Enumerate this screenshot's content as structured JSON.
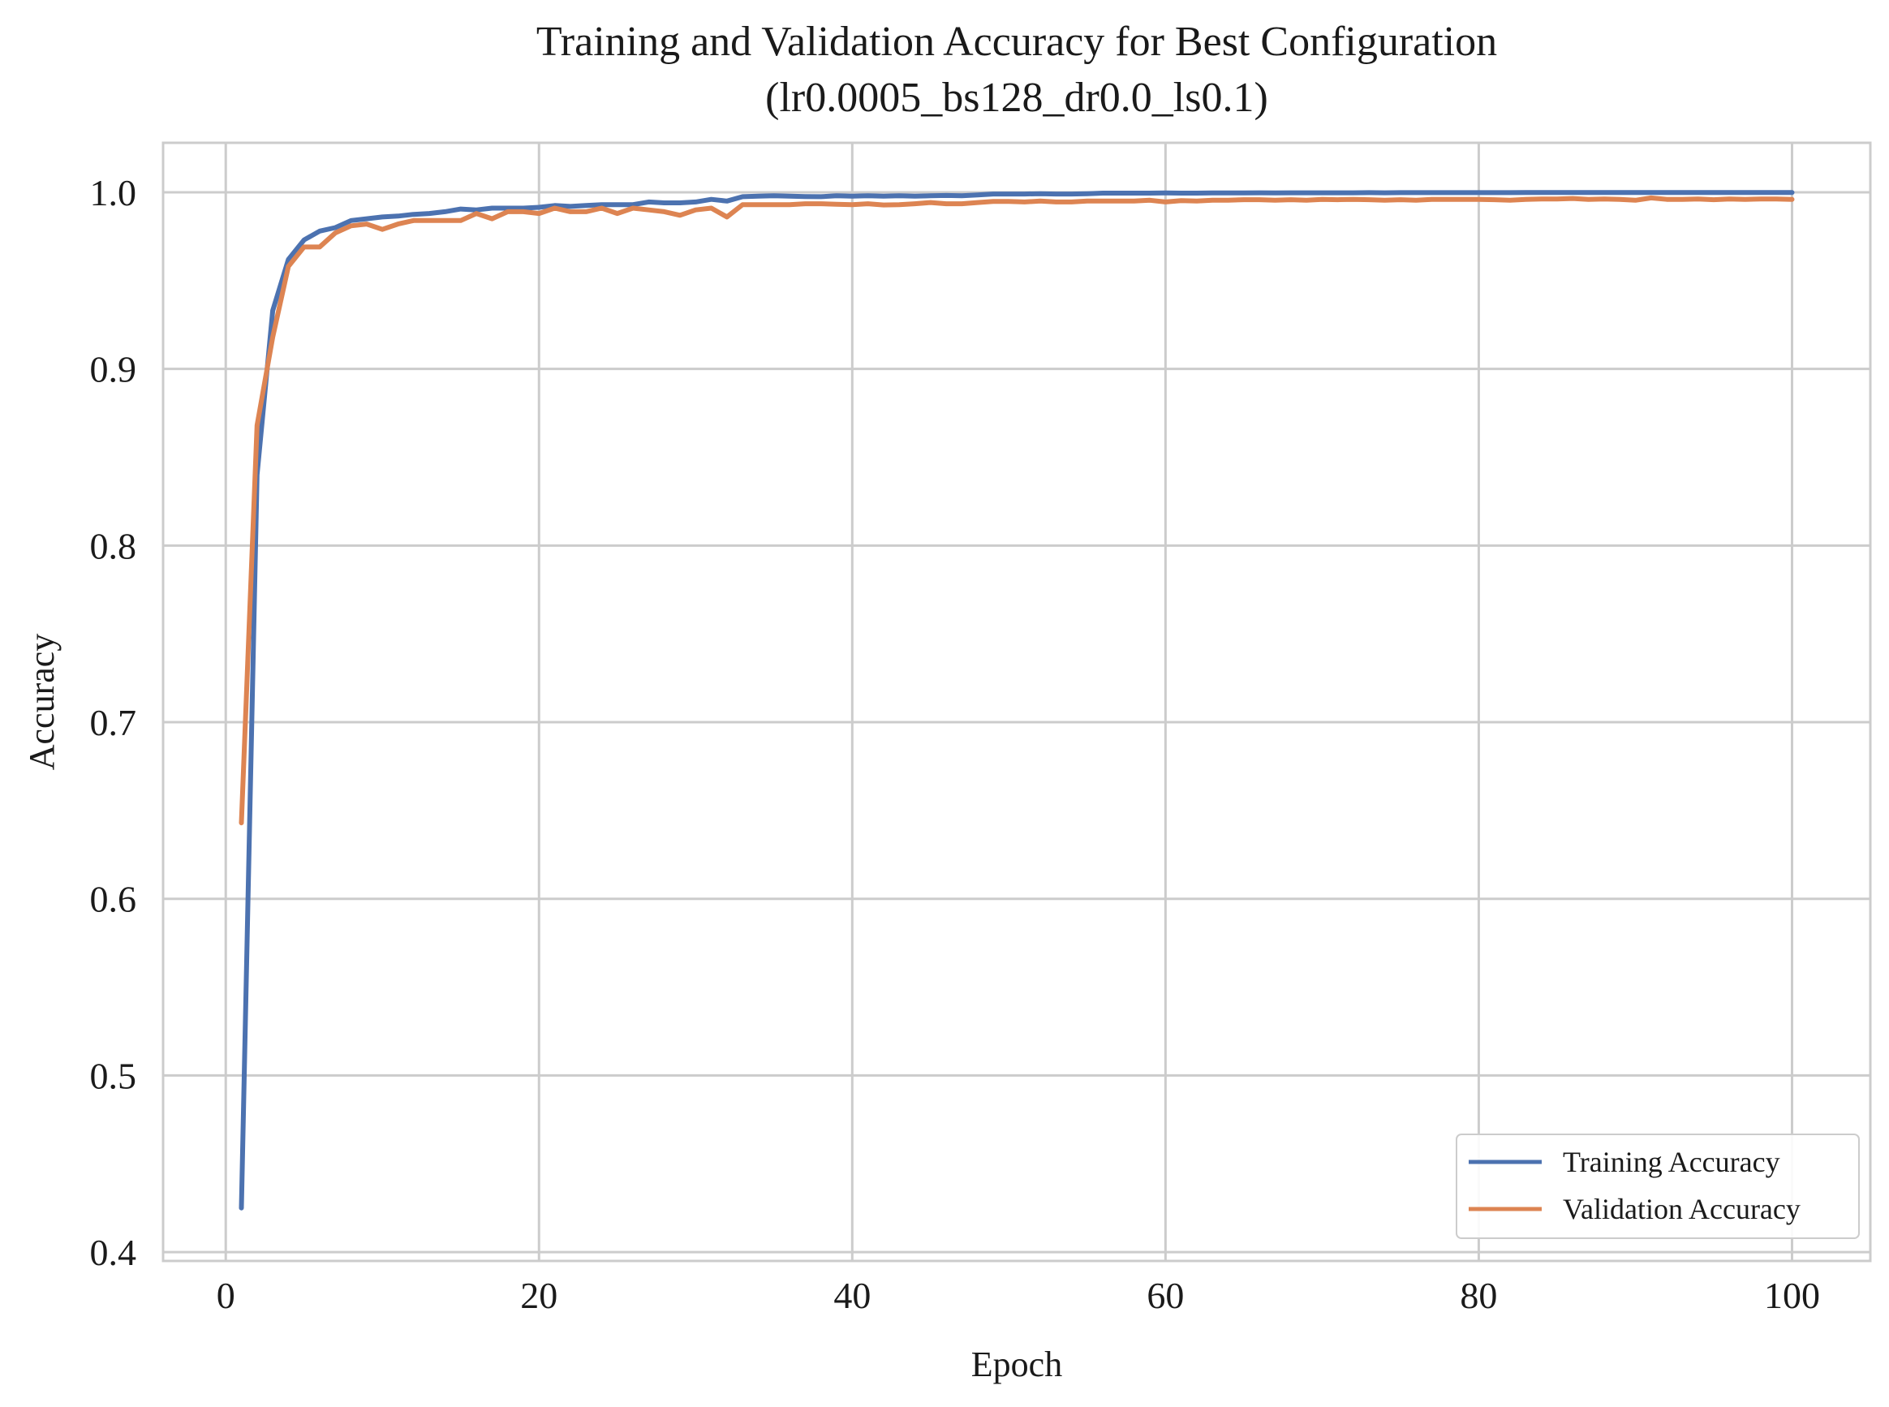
{
  "chart_data": {
    "type": "line",
    "title": "Training and Validation Accuracy for Best Configuration",
    "subtitle": "(lr0.0005_bs128_dr0.0_ls0.1)",
    "xlabel": "Epoch",
    "ylabel": "Accuracy",
    "xlim": [
      -4,
      105
    ],
    "ylim": [
      0.395,
      1.028
    ],
    "xticks": [
      0,
      20,
      40,
      60,
      80,
      100
    ],
    "yticks": [
      0.4,
      0.5,
      0.6,
      0.7,
      0.8,
      0.9,
      1.0
    ],
    "xtick_labels": [
      "0",
      "20",
      "40",
      "60",
      "80",
      "100"
    ],
    "ytick_labels": [
      "0.4",
      "0.5",
      "0.6",
      "0.7",
      "0.8",
      "0.9",
      "1.0"
    ],
    "grid": true,
    "legend_position": "lower-right",
    "x": [
      1,
      2,
      3,
      4,
      5,
      6,
      7,
      8,
      9,
      10,
      11,
      12,
      13,
      14,
      15,
      16,
      17,
      18,
      19,
      20,
      21,
      22,
      23,
      24,
      25,
      26,
      27,
      28,
      29,
      30,
      31,
      32,
      33,
      34,
      35,
      36,
      37,
      38,
      39,
      40,
      41,
      42,
      43,
      44,
      45,
      46,
      47,
      48,
      49,
      50,
      51,
      52,
      53,
      54,
      55,
      56,
      57,
      58,
      59,
      60,
      61,
      62,
      63,
      64,
      65,
      66,
      67,
      68,
      69,
      70,
      71,
      72,
      73,
      74,
      75,
      76,
      77,
      78,
      79,
      80,
      81,
      82,
      83,
      84,
      85,
      86,
      87,
      88,
      89,
      90,
      91,
      92,
      93,
      94,
      95,
      96,
      97,
      98,
      99,
      100
    ],
    "series": [
      {
        "name": "Training Accuracy",
        "color": "#4c72b0",
        "values": [
          0.425,
          0.84,
          0.933,
          0.962,
          0.973,
          0.978,
          0.98,
          0.984,
          0.985,
          0.986,
          0.9865,
          0.9875,
          0.988,
          0.989,
          0.9905,
          0.99,
          0.991,
          0.991,
          0.991,
          0.9915,
          0.9925,
          0.992,
          0.9925,
          0.993,
          0.993,
          0.993,
          0.9945,
          0.994,
          0.994,
          0.9945,
          0.996,
          0.995,
          0.9975,
          0.9978,
          0.998,
          0.9978,
          0.9976,
          0.9975,
          0.998,
          0.9978,
          0.998,
          0.9978,
          0.998,
          0.9978,
          0.998,
          0.9982,
          0.998,
          0.9985,
          0.999,
          0.999,
          0.999,
          0.9992,
          0.999,
          0.999,
          0.9992,
          0.9995,
          0.9995,
          0.9995,
          0.9995,
          0.9996,
          0.9995,
          0.9995,
          0.9996,
          0.9996,
          0.9996,
          0.9997,
          0.9996,
          0.9997,
          0.9997,
          0.9997,
          0.9997,
          0.9997,
          0.9998,
          0.9997,
          0.9998,
          0.9998,
          0.9998,
          0.9998,
          0.9998,
          0.9998,
          0.9998,
          0.9998,
          0.9999,
          0.9999,
          0.9999,
          0.9999,
          0.9999,
          0.9999,
          0.9999,
          0.9999,
          0.9999,
          0.9999,
          0.9999,
          0.9999,
          0.9999,
          0.9999,
          0.9999,
          0.9999,
          0.9999,
          0.9999
        ]
      },
      {
        "name": "Validation Accuracy",
        "color": "#dd8452",
        "values": [
          0.643,
          0.868,
          0.918,
          0.958,
          0.969,
          0.969,
          0.977,
          0.981,
          0.982,
          0.979,
          0.982,
          0.984,
          0.984,
          0.984,
          0.984,
          0.988,
          0.985,
          0.989,
          0.989,
          0.988,
          0.991,
          0.989,
          0.989,
          0.991,
          0.988,
          0.991,
          0.99,
          0.989,
          0.987,
          0.99,
          0.991,
          0.986,
          0.993,
          0.993,
          0.993,
          0.993,
          0.9935,
          0.9935,
          0.9932,
          0.993,
          0.9935,
          0.9928,
          0.993,
          0.9935,
          0.9942,
          0.9935,
          0.9935,
          0.9942,
          0.9948,
          0.9948,
          0.9945,
          0.995,
          0.9945,
          0.9945,
          0.995,
          0.995,
          0.995,
          0.995,
          0.9955,
          0.9945,
          0.9953,
          0.995,
          0.9955,
          0.9955,
          0.9958,
          0.9958,
          0.9955,
          0.9958,
          0.9955,
          0.996,
          0.9958,
          0.996,
          0.9958,
          0.9955,
          0.9958,
          0.9955,
          0.996,
          0.996,
          0.996,
          0.996,
          0.9958,
          0.9955,
          0.996,
          0.9962,
          0.9962,
          0.9965,
          0.996,
          0.9962,
          0.996,
          0.9955,
          0.9968,
          0.996,
          0.996,
          0.9962,
          0.9958,
          0.9962,
          0.996,
          0.9962,
          0.9962,
          0.996
        ]
      }
    ]
  }
}
